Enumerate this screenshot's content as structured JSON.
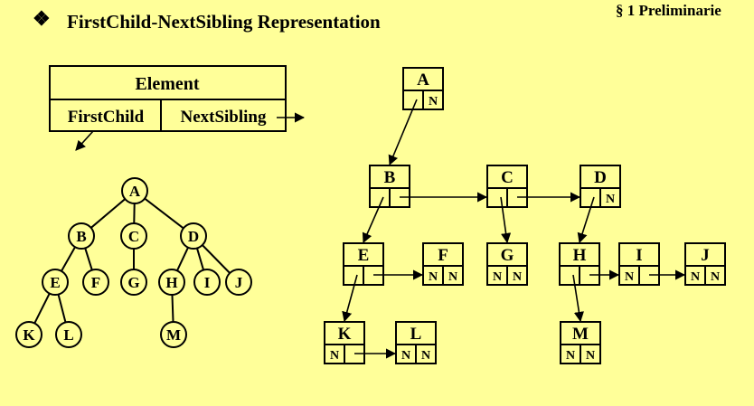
{
  "slide": {
    "title_bullet": "❖",
    "title": "FirstChild-NextSibling Representation",
    "section_label": "§ 1  Preliminarie"
  },
  "legend": {
    "header": "Element",
    "first_field": "FirstChild",
    "second_field": "NextSibling"
  },
  "tree": {
    "nodes": [
      "A",
      "B",
      "C",
      "D",
      "E",
      "F",
      "G",
      "H",
      "I",
      "J",
      "K",
      "L",
      "M"
    ],
    "edges": [
      [
        "A",
        "B"
      ],
      [
        "A",
        "C"
      ],
      [
        "A",
        "D"
      ],
      [
        "B",
        "E"
      ],
      [
        "B",
        "F"
      ],
      [
        "C",
        "G"
      ],
      [
        "D",
        "H"
      ],
      [
        "D",
        "I"
      ],
      [
        "D",
        "J"
      ],
      [
        "E",
        "K"
      ],
      [
        "E",
        "L"
      ],
      [
        "H",
        "M"
      ]
    ]
  },
  "linked": {
    "null_marker": "N",
    "nodes": [
      {
        "id": "A",
        "first": "B",
        "next": null
      },
      {
        "id": "B",
        "first": "E",
        "next": "C"
      },
      {
        "id": "C",
        "first": "G",
        "next": "D"
      },
      {
        "id": "D",
        "first": "H",
        "next": null
      },
      {
        "id": "E",
        "first": "K",
        "next": "F"
      },
      {
        "id": "F",
        "first": null,
        "next": null
      },
      {
        "id": "G",
        "first": null,
        "next": null
      },
      {
        "id": "H",
        "first": "M",
        "next": "I"
      },
      {
        "id": "I",
        "first": null,
        "next": "J"
      },
      {
        "id": "J",
        "first": null,
        "next": null
      },
      {
        "id": "K",
        "first": null,
        "next": "L"
      },
      {
        "id": "L",
        "first": null,
        "next": null
      },
      {
        "id": "M",
        "first": null,
        "next": null
      }
    ]
  }
}
